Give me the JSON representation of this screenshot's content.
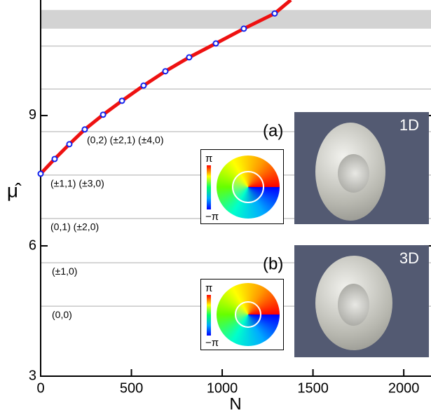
{
  "chart_data": {
    "type": "line",
    "x_label": "N",
    "y_label": "μ̂",
    "xlim": [
      0,
      2150
    ],
    "xticks": [
      0,
      500,
      1000,
      1500,
      2000
    ],
    "ylim": [
      3,
      11.66
    ],
    "yticks": [
      3,
      6,
      9
    ],
    "series": [
      {
        "color": "#ee1111",
        "marker_color": "#1122ee",
        "x": [
          0,
          77,
          158,
          243,
          344,
          448,
          567,
          687,
          818,
          965,
          1119,
          1289,
          1378
        ],
        "values": [
          7.66,
          8.0,
          8.34,
          8.68,
          9.02,
          9.34,
          9.69,
          10.02,
          10.34,
          10.66,
          11.0,
          11.35,
          11.66
        ]
      }
    ],
    "level_lines": [
      4.61,
      5.61,
      6.63,
      7.63,
      8.63,
      9.61,
      10.6
    ],
    "level_labels": [
      "(0,0)",
      "(±1,0)",
      "(0,1) (±2,0)",
      "(±1,1) (±3,0)",
      "(0,2) (±2,1) (±4,0)"
    ],
    "band": [
      11.0,
      11.43
    ],
    "insets": [
      {
        "label": "(a)",
        "tag": "1D"
      },
      {
        "label": "(b)",
        "tag": "3D"
      }
    ],
    "colorbar_labels": [
      "π",
      "−π"
    ]
  }
}
